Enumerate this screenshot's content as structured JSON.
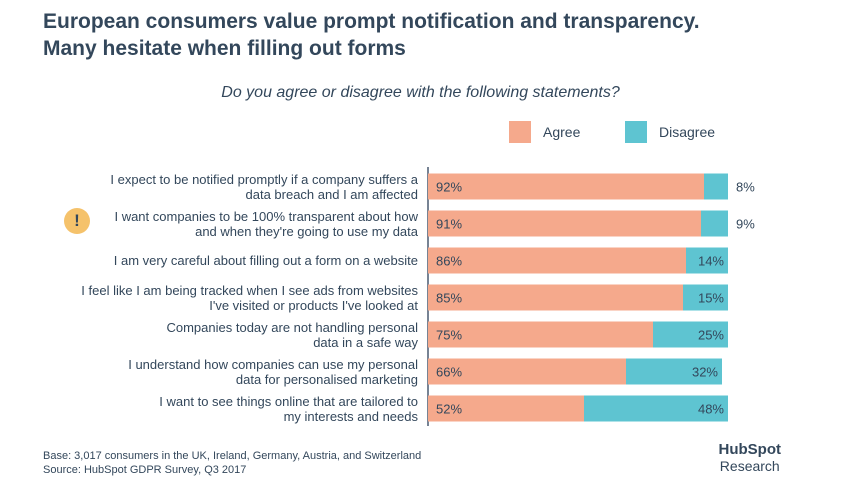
{
  "header": {
    "title_line1": "European consumers value prompt notification and transparency.",
    "title_line2": "Many hesitate when filling out forms",
    "subtitle": "Do you agree or disagree with the following statements?"
  },
  "legend": {
    "agree": "Agree",
    "disagree": "Disagree"
  },
  "alert_icon": "exclamation-icon",
  "footer": {
    "base": "Base: 3,017 consumers in the UK, Ireland, Germany, Austria, and Switzerland",
    "source": "Source: HubSpot GDPR Survey, Q3 2017"
  },
  "brand": {
    "logo": "HubSpot",
    "research": "Research"
  },
  "colors": {
    "agree": "#f5a98c",
    "disagree": "#5ec4d1",
    "axis": "#4a5a70"
  },
  "chart_data": {
    "type": "bar",
    "orientation": "horizontal",
    "stacked": true,
    "categories": [
      [
        "I expect to be notified promptly if a company suffers a",
        "data breach and I am affected"
      ],
      [
        "I want companies to be 100% transparent about how",
        "and when they're going to use my data"
      ],
      [
        "I am very careful about filling out a form on a website"
      ],
      [
        "I feel like I am being tracked when I see ads from websites",
        "I've visited or products I've looked at"
      ],
      [
        "Companies today are not handling personal",
        "data in a safe way"
      ],
      [
        "I understand how companies can use my personal",
        "data for personalised marketing"
      ],
      [
        "I want to see things online that are tailored to",
        "my interests and needs"
      ]
    ],
    "series": [
      {
        "name": "Agree",
        "values": [
          92,
          91,
          86,
          85,
          75,
          66,
          52
        ],
        "labels": [
          "92%",
          "91%",
          "86%",
          "85%",
          "75%",
          "66%",
          "52%"
        ]
      },
      {
        "name": "Disagree",
        "values": [
          8,
          9,
          14,
          15,
          25,
          32,
          48
        ],
        "labels": [
          "8%",
          "9%",
          "14%",
          "15%",
          "25%",
          "32%",
          "48%"
        ]
      }
    ],
    "xlim": [
      0,
      100
    ],
    "legend_position": "top-right"
  }
}
